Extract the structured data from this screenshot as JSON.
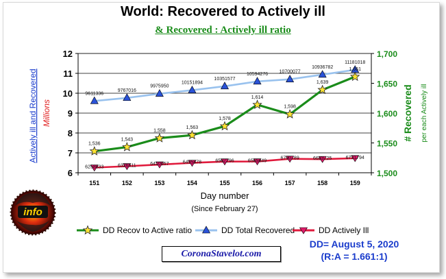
{
  "chart_data": {
    "type": "line",
    "title": "World: Recovered to Actively ill",
    "subtitle": "& Recovered : Actively ill ratio",
    "xlabel": "Day number",
    "xlabel_note": "(Since February 27)",
    "ylabel_left_blue": "Actively ill and Recovered",
    "ylabel_left_red": "Millions",
    "ylabel_right_main": "# Recovered",
    "ylabel_right_sub": "per each Actively ill",
    "categories": [
      "151",
      "152",
      "153",
      "154",
      "155",
      "156",
      "157",
      "158",
      "159"
    ],
    "left_axis": {
      "ylim": [
        6,
        12
      ],
      "ticks": [
        "6",
        "7",
        "8",
        "9",
        "10",
        "11",
        "12"
      ]
    },
    "right_axis": {
      "ylim": [
        1.5,
        1.7
      ],
      "ticks": [
        "1,500",
        "1,550",
        "1,600",
        "1,650",
        "1,700"
      ]
    },
    "grid": true,
    "legend_position": "bottom",
    "series": [
      {
        "name": "DD Recov to Active ratio",
        "axis": "right",
        "color": "#1a8c1a",
        "marker": "star-yellow",
        "values": [
          1.536,
          1.543,
          1.558,
          1.563,
          1.578,
          1.614,
          1.598,
          1.639,
          1.661
        ],
        "labels": [
          "1,536",
          "1,543",
          "1,558",
          "1,563",
          "1,578",
          "1,614",
          "1,598",
          "1,639",
          "1,661"
        ]
      },
      {
        "name": "DD Total Recovered",
        "axis": "left",
        "color": "#99c2ee",
        "marker": "triangle-up-blue",
        "values": [
          9.611336,
          9.767016,
          9.97595,
          10.151894,
          10.351577,
          10.594276,
          10.700077,
          10.936782,
          11.181018
        ],
        "labels": [
          "9611336",
          "9767016",
          "9975950",
          "10151894",
          "10351577",
          "10594276",
          "10700077",
          "10936782",
          "11181018"
        ]
      },
      {
        "name": "DD Actively Ill",
        "axis": "left",
        "color": "#e01a3c",
        "marker": "triangle-down-red",
        "values": [
          6.258833,
          6.326511,
          6.410057,
          6.495878,
          6.562296,
          6.565849,
          6.700789,
          6.683725,
          6.731794
        ],
        "labels": [
          "6258833",
          "6326511",
          "6410057",
          "6495878",
          "6562296",
          "6565849",
          "6700789",
          "6683725",
          "6731794"
        ]
      }
    ]
  },
  "footer": {
    "site": "CoronaStavelot.com",
    "dd_date": "DD= August 5, 2020",
    "ratio_note": "(R:A = 1.661:1)"
  },
  "logo": {
    "text": "info",
    "icon": "globe-logo-icon"
  }
}
